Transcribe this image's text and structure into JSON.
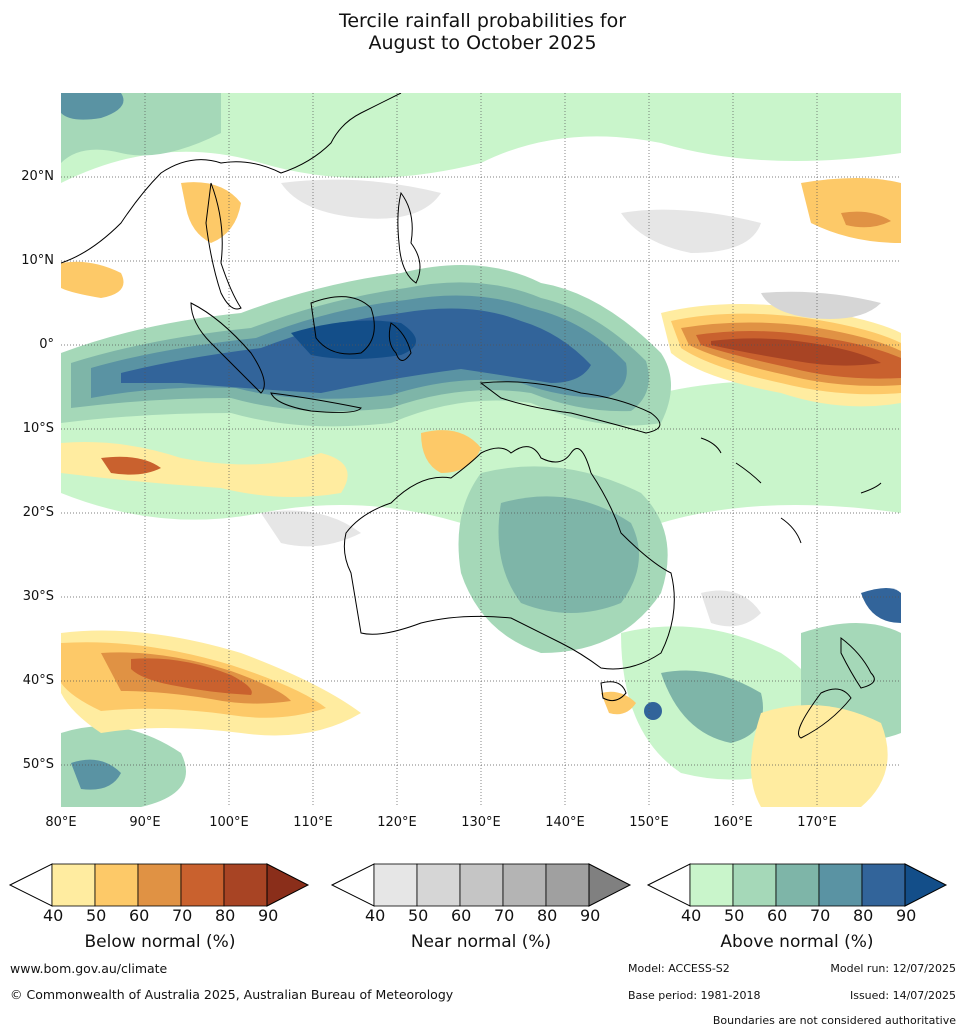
{
  "title": {
    "line1": "Tercile rainfall probabilities for",
    "line2": "August to October 2025"
  },
  "map": {
    "lat_ticks": [
      "20°N",
      "10°N",
      "0°",
      "10°S",
      "20°S",
      "30°S",
      "40°S",
      "50°S"
    ],
    "lon_ticks": [
      "80°E",
      "90°E",
      "100°E",
      "110°E",
      "120°E",
      "130°E",
      "140°E",
      "150°E",
      "160°E",
      "170°E"
    ],
    "colors": {
      "above": [
        "#c9f5cb",
        "#a5d8b8",
        "#7eb5a8",
        "#5a93a3",
        "#32649a",
        "#134e89"
      ],
      "below": [
        "#ffeca0",
        "#fdc968",
        "#e09244",
        "#c9612e",
        "#a84424",
        "#8a2e1a"
      ],
      "near": [
        "#e6e6e6",
        "#d6d6d6",
        "#c5c5c5",
        "#b4b4b4",
        "#a0a0a0",
        "#808080"
      ],
      "coast": "#000000"
    }
  },
  "colorbars": {
    "below": {
      "title": "Below normal (%)",
      "ticks": [
        "40",
        "50",
        "60",
        "70",
        "80",
        "90"
      ]
    },
    "near": {
      "title": "Near normal (%)",
      "ticks": [
        "40",
        "50",
        "60",
        "70",
        "80",
        "90"
      ]
    },
    "above": {
      "title": "Above normal (%)",
      "ticks": [
        "40",
        "50",
        "60",
        "70",
        "80",
        "90"
      ]
    }
  },
  "footer": {
    "website": "www.bom.gov.au/climate",
    "copyright": "© Commonwealth of Australia 2025, Australian Bureau of Meteorology",
    "model": "Model: ACCESS-S2",
    "base_period": "Base period: 1981-2018",
    "model_run": "Model run: 12/07/2025",
    "issued": "Issued: 14/07/2025",
    "disclaimer": "Boundaries are not considered authoritative"
  }
}
